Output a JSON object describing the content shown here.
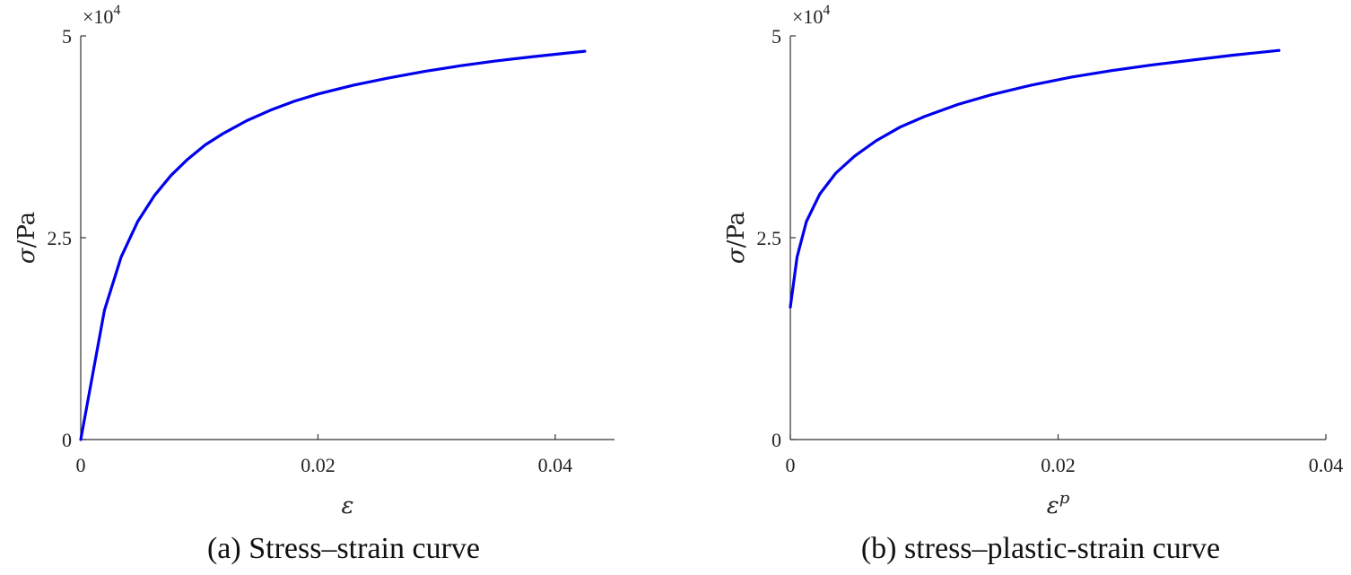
{
  "chart_data": [
    {
      "type": "line",
      "panel": "a",
      "caption": "(a)  Stress–strain curve",
      "xlabel": "ε",
      "xlabel_sup": "",
      "ylabel_symbol": "σ",
      "ylabel_unit": "/Pa",
      "y_exponent_label": "×10",
      "y_exponent": "4",
      "xlim": [
        0,
        0.045
      ],
      "ylim": [
        0,
        50000
      ],
      "xticks": [
        0,
        0.02,
        0.04
      ],
      "xtick_labels": [
        "0",
        "0.02",
        "0.04"
      ],
      "yticks": [
        0,
        25000,
        50000
      ],
      "ytick_labels": [
        "0",
        "2.5",
        "5"
      ],
      "line_color": "#0000ee",
      "series": [
        {
          "name": "stress-strain",
          "x": [
            0,
            0.002,
            0.0034,
            0.0048,
            0.0062,
            0.0076,
            0.009,
            0.0105,
            0.012,
            0.014,
            0.016,
            0.018,
            0.02,
            0.023,
            0.026,
            0.029,
            0.032,
            0.035,
            0.038,
            0.0425
          ],
          "y": [
            0,
            16000,
            22600,
            27000,
            30200,
            32700,
            34700,
            36500,
            37900,
            39500,
            40800,
            41900,
            42800,
            43900,
            44800,
            45600,
            46300,
            46900,
            47400,
            48100
          ]
        }
      ]
    },
    {
      "type": "line",
      "panel": "b",
      "caption": "(b)  stress–plastic-strain curve",
      "xlabel": "ε",
      "xlabel_sup": "p",
      "ylabel_symbol": "σ",
      "ylabel_unit": "/Pa",
      "y_exponent_label": "×10",
      "y_exponent": "4",
      "xlim": [
        0,
        0.04
      ],
      "ylim": [
        0,
        50000
      ],
      "xticks": [
        0,
        0.02,
        0.04
      ],
      "xtick_labels": [
        "0",
        "0.02",
        "0.04"
      ],
      "yticks": [
        0,
        25000,
        50000
      ],
      "ytick_labels": [
        "0",
        "2.5",
        "5"
      ],
      "line_color": "#0000ee",
      "series": [
        {
          "name": "stress-plastic-strain",
          "x": [
            0,
            0.0005,
            0.0012,
            0.0022,
            0.0034,
            0.0048,
            0.0064,
            0.0082,
            0.01,
            0.0125,
            0.015,
            0.018,
            0.021,
            0.024,
            0.027,
            0.03,
            0.033,
            0.0365
          ],
          "y": [
            16400,
            22600,
            27000,
            30400,
            33000,
            35100,
            37000,
            38700,
            40000,
            41500,
            42700,
            43900,
            44900,
            45700,
            46400,
            47000,
            47600,
            48200
          ]
        }
      ]
    }
  ]
}
